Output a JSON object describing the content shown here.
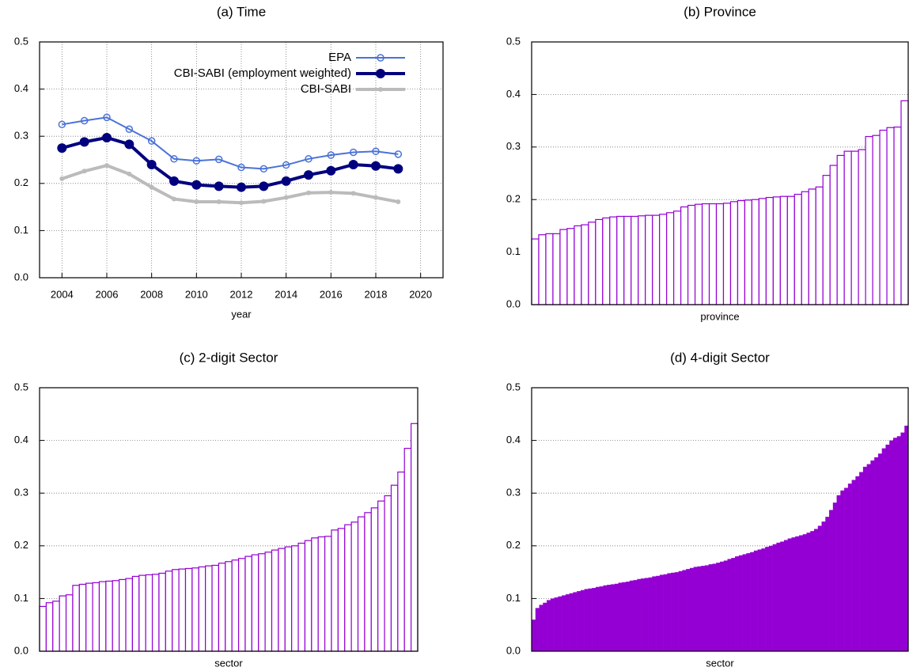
{
  "chart_data": [
    {
      "type": "line",
      "title": "(a) Time",
      "xlabel": "year",
      "x": [
        2004,
        2005,
        2006,
        2007,
        2008,
        2009,
        2010,
        2011,
        2012,
        2013,
        2014,
        2015,
        2016,
        2017,
        2018,
        2019
      ],
      "series": [
        {
          "name": "EPA",
          "color": "#4a72d8",
          "marker": "open",
          "linewidth": 2,
          "values": [
            0.325,
            0.333,
            0.34,
            0.315,
            0.29,
            0.252,
            0.248,
            0.251,
            0.234,
            0.231,
            0.239,
            0.252,
            0.26,
            0.266,
            0.268,
            0.262
          ]
        },
        {
          "name": "CBI-SABI (employment weighted)",
          "color": "#00007f",
          "marker": "filled",
          "linewidth": 4,
          "values": [
            0.275,
            0.288,
            0.297,
            0.283,
            0.24,
            0.205,
            0.197,
            0.194,
            0.192,
            0.194,
            0.205,
            0.218,
            0.227,
            0.24,
            0.237,
            0.231
          ]
        },
        {
          "name": "CBI-SABI",
          "color": "#bbbbbb",
          "marker": "small",
          "linewidth": 4,
          "values": [
            0.21,
            0.226,
            0.238,
            0.22,
            0.192,
            0.167,
            0.161,
            0.161,
            0.159,
            0.162,
            0.17,
            0.18,
            0.181,
            0.179,
            0.17,
            0.161
          ]
        }
      ],
      "xlim": [
        2003,
        2021
      ],
      "xticks": [
        2004,
        2006,
        2008,
        2010,
        2012,
        2014,
        2016,
        2018,
        2020
      ],
      "ylim": [
        0,
        0.5
      ],
      "yticks": [
        {
          "value": 0,
          "label": "0.0"
        },
        0.1,
        0.2,
        0.3,
        0.4,
        0.5
      ],
      "grid": true,
      "legend": "upper right"
    },
    {
      "type": "bar",
      "title": "(b) Province",
      "xlabel": "province",
      "color": "#9400d3",
      "fill": "#ffffff",
      "values": [
        0.125,
        0.133,
        0.135,
        0.135,
        0.143,
        0.145,
        0.15,
        0.152,
        0.157,
        0.162,
        0.165,
        0.167,
        0.168,
        0.168,
        0.168,
        0.169,
        0.17,
        0.17,
        0.172,
        0.175,
        0.178,
        0.186,
        0.189,
        0.191,
        0.192,
        0.192,
        0.192,
        0.193,
        0.196,
        0.198,
        0.199,
        0.2,
        0.202,
        0.204,
        0.205,
        0.206,
        0.206,
        0.21,
        0.215,
        0.22,
        0.224,
        0.246,
        0.265,
        0.284,
        0.292,
        0.292,
        0.295,
        0.32,
        0.322,
        0.332,
        0.337,
        0.338,
        0.388
      ],
      "ylim": [
        0,
        0.5
      ],
      "yticks": [
        {
          "value": 0,
          "label": "0.0"
        },
        0.1,
        0.2,
        0.3,
        0.4,
        0.5
      ],
      "grid": true
    },
    {
      "type": "bar",
      "title": "(c) 2-digit Sector",
      "xlabel": "sector",
      "color": "#9400d3",
      "fill": "#ffffff",
      "values": [
        0.085,
        0.092,
        0.095,
        0.105,
        0.107,
        0.125,
        0.127,
        0.129,
        0.13,
        0.132,
        0.133,
        0.134,
        0.136,
        0.138,
        0.142,
        0.144,
        0.145,
        0.146,
        0.148,
        0.152,
        0.155,
        0.156,
        0.157,
        0.158,
        0.16,
        0.162,
        0.163,
        0.167,
        0.17,
        0.173,
        0.176,
        0.18,
        0.183,
        0.185,
        0.188,
        0.192,
        0.195,
        0.198,
        0.2,
        0.205,
        0.21,
        0.215,
        0.217,
        0.218,
        0.23,
        0.233,
        0.24,
        0.245,
        0.255,
        0.263,
        0.272,
        0.285,
        0.295,
        0.315,
        0.34,
        0.385,
        0.432
      ],
      "ylim": [
        0,
        0.5
      ],
      "yticks": [
        {
          "value": 0,
          "label": "0.0"
        },
        0.1,
        0.2,
        0.3,
        0.4,
        0.5
      ],
      "grid": true
    },
    {
      "type": "bar",
      "title": "(d) 4-digit Sector",
      "xlabel": "sector",
      "color": "#9400d3",
      "fill": "#9400d3",
      "values": [
        0.06,
        0.082,
        0.088,
        0.092,
        0.097,
        0.1,
        0.102,
        0.104,
        0.106,
        0.108,
        0.11,
        0.112,
        0.114,
        0.116,
        0.118,
        0.119,
        0.12,
        0.122,
        0.123,
        0.125,
        0.126,
        0.127,
        0.128,
        0.13,
        0.131,
        0.132,
        0.134,
        0.135,
        0.137,
        0.138,
        0.139,
        0.14,
        0.142,
        0.143,
        0.145,
        0.146,
        0.148,
        0.149,
        0.15,
        0.152,
        0.154,
        0.156,
        0.158,
        0.16,
        0.161,
        0.162,
        0.163,
        0.165,
        0.166,
        0.168,
        0.17,
        0.172,
        0.175,
        0.177,
        0.18,
        0.182,
        0.184,
        0.186,
        0.188,
        0.191,
        0.193,
        0.195,
        0.198,
        0.2,
        0.203,
        0.206,
        0.208,
        0.211,
        0.214,
        0.216,
        0.218,
        0.22,
        0.222,
        0.225,
        0.228,
        0.232,
        0.238,
        0.246,
        0.255,
        0.268,
        0.282,
        0.296,
        0.305,
        0.31,
        0.318,
        0.325,
        0.332,
        0.34,
        0.35,
        0.355,
        0.362,
        0.368,
        0.375,
        0.385,
        0.392,
        0.4,
        0.405,
        0.408,
        0.415,
        0.428
      ],
      "ylim": [
        0,
        0.5
      ],
      "yticks": [
        {
          "value": 0,
          "label": "0.0"
        },
        0.1,
        0.2,
        0.3,
        0.4,
        0.5
      ],
      "grid": true
    }
  ]
}
